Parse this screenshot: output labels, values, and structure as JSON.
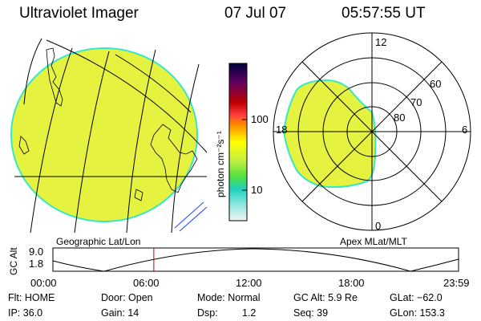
{
  "header": {
    "title": "Ultraviolet Imager",
    "date": "07 Jul 07",
    "time": "05:57:55 UT"
  },
  "geo_panel": {
    "label": "Geographic Lat/Lon"
  },
  "polar_panel": {
    "label": "Apex MLat/MLT",
    "mlt_labels": [
      "12",
      "18",
      "6",
      "0"
    ],
    "lat_labels": [
      "60",
      "70",
      "80"
    ]
  },
  "colorbar": {
    "unit_label": "photon cm⁻²s⁻¹",
    "ticks": [
      "100",
      "10"
    ],
    "colors": [
      "#000040",
      "#400060",
      "#800060",
      "#c00000",
      "#f04040",
      "#ff8000",
      "#ffc000",
      "#ffff00",
      "#c8f040",
      "#60e040",
      "#20d0c0",
      "#80e8e0",
      "#e0f0f0"
    ],
    "fill_color": "#e6f240",
    "edge_color": "#38e6c8"
  },
  "altitude_plot": {
    "axis_label": "GC Alt",
    "y_ticks": [
      "9.0",
      "1.8"
    ],
    "x_ticks": [
      "00:00",
      "06:00",
      "12:00",
      "18:00",
      "23:59"
    ],
    "marker_time_hours": 5.97,
    "marker_color": "#c00000"
  },
  "info": {
    "flt": "Flt: HOME",
    "door": "Door: Open",
    "mode": "Mode: Normal",
    "gc_alt": "GC Alt: 5.9 Re",
    "glat": "GLat: −62.0",
    "ip": "IP: 36.0",
    "gain": "Gain: 14",
    "dsp_label": "Dsp:",
    "dsp_value": "1.2",
    "seq": "Seq: 39",
    "glon": "GLon: 153.3"
  }
}
